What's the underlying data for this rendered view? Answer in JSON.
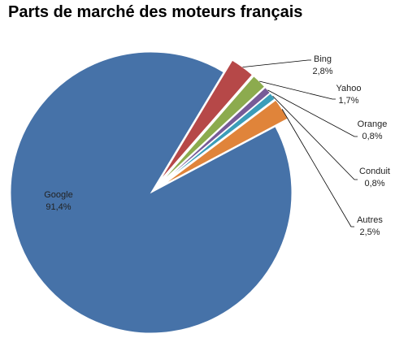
{
  "chart_data": {
    "type": "pie",
    "title": "Parts de marché des moteurs français",
    "slices": [
      {
        "name": "Google",
        "value": 91.4,
        "label": "91,4%",
        "color": "#4672A8",
        "exploded": false
      },
      {
        "name": "Bing",
        "value": 2.8,
        "label": "2,8%",
        "color": "#B64848",
        "exploded": true
      },
      {
        "name": "Yahoo",
        "value": 1.7,
        "label": "1,7%",
        "color": "#8CAB4E",
        "exploded": true
      },
      {
        "name": "Orange",
        "value": 0.8,
        "label": "0,8%",
        "color": "#775B97",
        "exploded": true
      },
      {
        "name": "Conduit",
        "value": 0.8,
        "label": "0,8%",
        "color": "#3B9DB9",
        "exploded": true
      },
      {
        "name": "Autres",
        "value": 2.5,
        "label": "2,5%",
        "color": "#E0843A",
        "exploded": true
      }
    ],
    "legend": "none"
  }
}
